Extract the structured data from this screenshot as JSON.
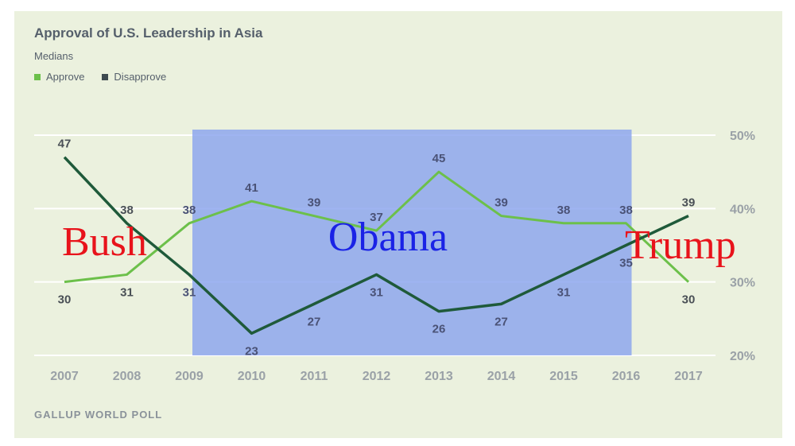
{
  "header": {
    "title": "Approval of U.S. Leadership in Asia",
    "subtitle": "Medians"
  },
  "legend": {
    "approve_label": "Approve",
    "disapprove_label": "Disapprove"
  },
  "source": "GALLUP WORLD POLL",
  "colors": {
    "background": "#ebf1de",
    "approve": "#6cc04a",
    "disapprove": "#1f5a3a",
    "highlight": "#8aa4ee",
    "annotation_red": "#e8131b",
    "annotation_blue": "#1a22e6",
    "axis_text": "#9aa1a7",
    "gridline": "#ffffff"
  },
  "chart_data": {
    "type": "line",
    "title": "Approval of U.S. Leadership in Asia",
    "subtitle": "Medians",
    "categories": [
      "2007",
      "2008",
      "2009",
      "2010",
      "2011",
      "2012",
      "2013",
      "2014",
      "2015",
      "2016",
      "2017"
    ],
    "series": [
      {
        "name": "Approve",
        "values": [
          30,
          31,
          38,
          41,
          39,
          37,
          45,
          39,
          38,
          38,
          30
        ]
      },
      {
        "name": "Disapprove",
        "values": [
          47,
          38,
          31,
          23,
          27,
          31,
          26,
          27,
          31,
          35,
          39
        ]
      }
    ],
    "ylim": [
      20,
      50
    ],
    "yticks": [
      "20%",
      "30%",
      "40%",
      "50%"
    ],
    "ytick_values": [
      20,
      30,
      40,
      50
    ],
    "y_axis_side": "right",
    "grid": true,
    "legend_position": "top-left",
    "highlight_band": {
      "from": "2009",
      "to": "2016"
    },
    "annotations": [
      {
        "text": "Bush",
        "color": "red"
      },
      {
        "text": "Obama",
        "color": "blue"
      },
      {
        "text": "Trump",
        "color": "red"
      }
    ]
  }
}
